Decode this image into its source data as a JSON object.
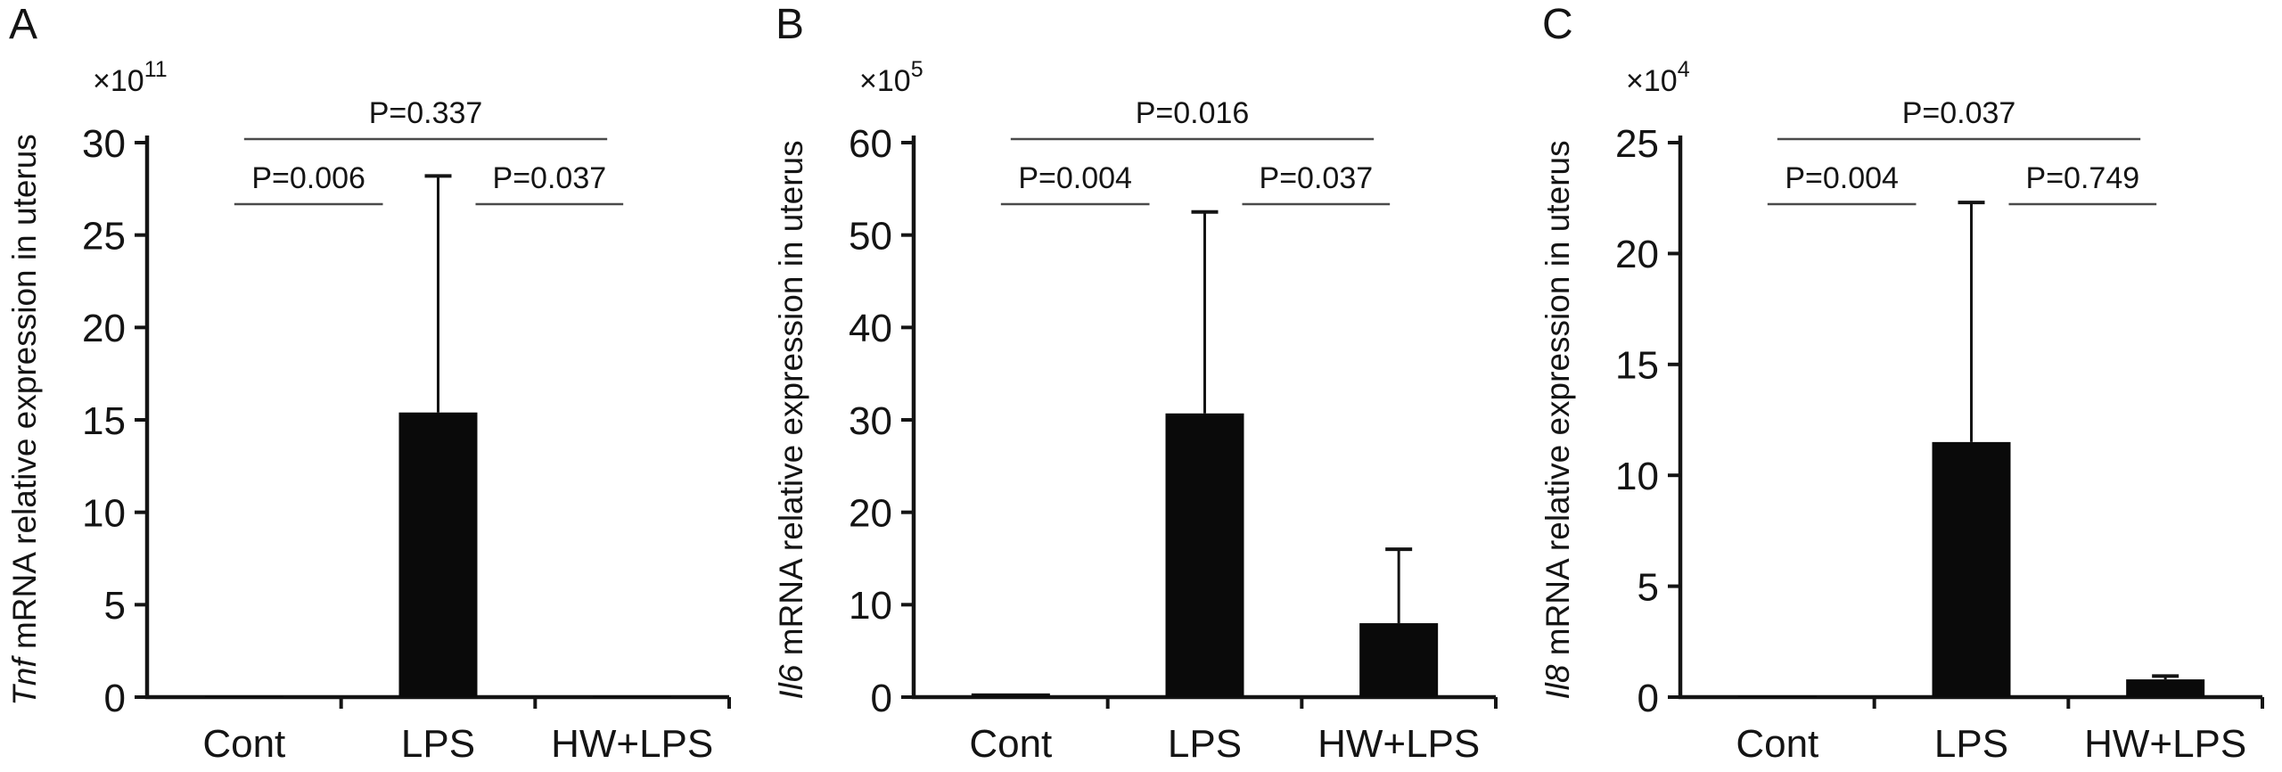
{
  "figure": {
    "colors": {
      "background": "#ffffff",
      "ink": "#141414",
      "bar": "#0a0a0a",
      "bracket": "#4a4a4a"
    }
  },
  "chart_data": [
    {
      "type": "bar",
      "panel_label": "A",
      "ylabel": "Tnf mRNA relative expression in uterus",
      "ylabel_italic": "Tnf",
      "ylabel_rest": " mRNA relative expression in uterus",
      "xlabel": "",
      "y_scale_factor": "×10^11",
      "scale_label": "×10",
      "scale_exponent": "11",
      "categories": [
        "Cont",
        "LPS",
        "HW+LPS"
      ],
      "values": [
        0.05,
        15.4,
        0.05
      ],
      "error_bar_tops": [
        null,
        28.2,
        null
      ],
      "ylim": [
        0,
        30
      ],
      "yticks": [
        0,
        5,
        10,
        15,
        20,
        25,
        30
      ],
      "grid": false,
      "legend": null,
      "significance": [
        {
          "label": "P=0.337",
          "from": "Cont",
          "to": "HW+LPS",
          "level": "top"
        },
        {
          "label": "P=0.006",
          "from": "Cont",
          "to": "LPS",
          "level": "inner"
        },
        {
          "label": "P=0.037",
          "from": "LPS",
          "to": "HW+LPS",
          "level": "inner"
        }
      ]
    },
    {
      "type": "bar",
      "panel_label": "B",
      "ylabel": "Il6 mRNA relative expression in uterus",
      "ylabel_italic": "Il6",
      "ylabel_rest": " mRNA relative expression in uterus",
      "xlabel": "",
      "y_scale_factor": "×10^5",
      "scale_label": "×10",
      "scale_exponent": "5",
      "categories": [
        "Cont",
        "LPS",
        "HW+LPS"
      ],
      "values": [
        0.4,
        30.7,
        8.0
      ],
      "error_bar_tops": [
        null,
        52.5,
        16.0
      ],
      "ylim": [
        0,
        60
      ],
      "yticks": [
        0,
        10,
        20,
        30,
        40,
        50,
        60
      ],
      "grid": false,
      "legend": null,
      "significance": [
        {
          "label": "P=0.016",
          "from": "Cont",
          "to": "HW+LPS",
          "level": "top"
        },
        {
          "label": "P=0.004",
          "from": "Cont",
          "to": "LPS",
          "level": "inner"
        },
        {
          "label": "P=0.037",
          "from": "LPS",
          "to": "HW+LPS",
          "level": "inner"
        }
      ]
    },
    {
      "type": "bar",
      "panel_label": "C",
      "ylabel": "Il8 mRNA relative expression in uterus",
      "ylabel_italic": "Il8",
      "ylabel_rest": " mRNA relative expression in uterus",
      "xlabel": "",
      "y_scale_factor": "×10^4",
      "scale_label": "×10",
      "scale_exponent": "4",
      "categories": [
        "Cont",
        "LPS",
        "HW+LPS"
      ],
      "values": [
        0.05,
        11.5,
        0.8
      ],
      "error_bar_tops": [
        null,
        22.3,
        0.95
      ],
      "ylim": [
        0,
        25
      ],
      "yticks": [
        0,
        5,
        10,
        15,
        20,
        25
      ],
      "grid": false,
      "legend": null,
      "significance": [
        {
          "label": "P=0.037",
          "from": "Cont",
          "to": "HW+LPS",
          "level": "top"
        },
        {
          "label": "P=0.004",
          "from": "Cont",
          "to": "LPS",
          "level": "inner"
        },
        {
          "label": "P=0.749",
          "from": "LPS",
          "to": "HW+LPS",
          "level": "inner"
        }
      ]
    }
  ]
}
